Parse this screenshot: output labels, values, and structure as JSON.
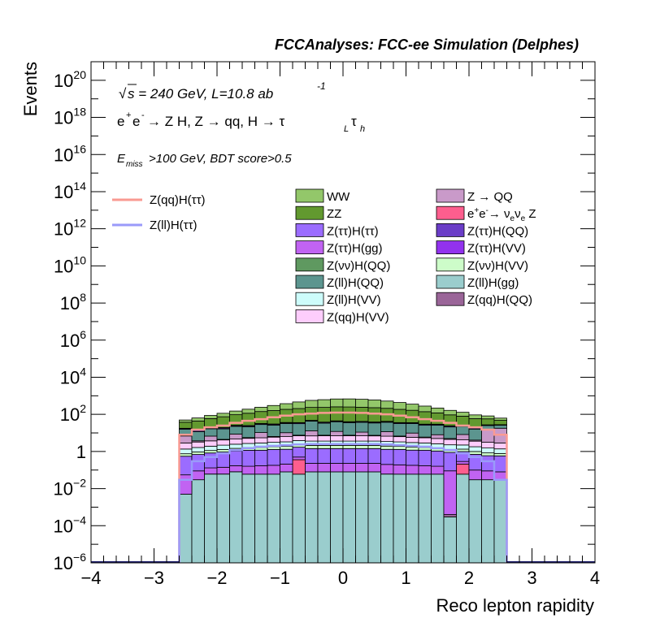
{
  "chart_data": {
    "type": "bar",
    "stacked": true,
    "log_scale_y": true,
    "title": "FCCAnalyses: FCC-ee Simulation (Delphes)",
    "xlabel": "Reco lepton rapidity",
    "ylabel": "Events",
    "xlim": [
      -4,
      4
    ],
    "ylim": [
      1e-06,
      1e+21
    ],
    "x_bins": [
      -2.6,
      -2.4,
      -2.2,
      -2.0,
      -1.8,
      -1.6,
      -1.4,
      -1.2,
      -1.0,
      -0.8,
      -0.6,
      -0.4,
      -0.2,
      0.0,
      0.2,
      0.4,
      0.6,
      0.8,
      1.0,
      1.2,
      1.4,
      1.6,
      1.8,
      2.0,
      2.2,
      2.4,
      2.6
    ],
    "x_ticks": [
      {
        "value": -4,
        "label": "−4"
      },
      {
        "value": -3,
        "label": "−3"
      },
      {
        "value": -2,
        "label": "−2"
      },
      {
        "value": -1,
        "label": "−1"
      },
      {
        "value": 0,
        "label": "0"
      },
      {
        "value": 1,
        "label": "1"
      },
      {
        "value": 2,
        "label": "2"
      },
      {
        "value": 3,
        "label": "3"
      },
      {
        "value": 4,
        "label": "4"
      }
    ],
    "y_ticks": [
      {
        "value": 1e-06,
        "base": "10",
        "exp": "−6"
      },
      {
        "value": 0.0001,
        "base": "10",
        "exp": "−4"
      },
      {
        "value": 0.01,
        "base": "10",
        "exp": "−2"
      },
      {
        "value": 1,
        "base": "1",
        "exp": ""
      },
      {
        "value": 100.0,
        "base": "10",
        "exp": "2"
      },
      {
        "value": 10000.0,
        "base": "10",
        "exp": "4"
      },
      {
        "value": 1000000.0,
        "base": "10",
        "exp": "6"
      },
      {
        "value": 100000000.0,
        "base": "10",
        "exp": "8"
      },
      {
        "value": 10000000000.0,
        "base": "10",
        "exp": "10"
      },
      {
        "value": 1000000000000.0,
        "base": "10",
        "exp": "12"
      },
      {
        "value": 100000000000000.0,
        "base": "10",
        "exp": "14"
      },
      {
        "value": 1e+16,
        "base": "10",
        "exp": "16"
      },
      {
        "value": 1e+18,
        "base": "10",
        "exp": "18"
      },
      {
        "value": 1e+20,
        "base": "10",
        "exp": "20"
      }
    ],
    "annotations": {
      "sqrt": "√",
      "energy": "s = 240 GeV, L=10.8 ab",
      "energy_sup": "-1",
      "process_main": "e",
      "process_sup1": "+",
      "process_mid": "e",
      "process_sup2": "-",
      "process_arrow1": " → Z H, Z  → qq, H  → τ",
      "process_sub1": "L",
      "process_tau2": "τ",
      "process_sub2": "h",
      "cut_e": "E",
      "cut_sub": "miss",
      "cut_rest": ">100 GeV, BDT score>0.5"
    },
    "stack_order_bottom_to_top": [
      "Z(ll)H(gg)",
      "Z(qq)H(QQ)",
      "e+e- → νeνe Z",
      "Z(νν)H(QQ)",
      "Z(ττ)H(gg)",
      "Z(ττ)H(ττ)",
      "Z(νν)H(VV)",
      "Z(ll)H(VV)",
      "Z(qq)H(VV)",
      "Z → QQ",
      "Z(ll)H(QQ)",
      "Z(ττ)H(QQ)",
      "Z(ττ)H(VV)",
      "ZZ",
      "WW"
    ],
    "series": [
      {
        "name": "WW",
        "legend": "WW",
        "color": "#93c76a",
        "values": [
          12,
          20,
          28,
          40,
          55,
          75,
          100,
          140,
          190,
          260,
          330,
          380,
          420,
          430,
          410,
          370,
          310,
          250,
          190,
          140,
          100,
          70,
          50,
          35,
          25,
          15
        ]
      },
      {
        "name": "ZZ",
        "legend": "ZZ",
        "color": "#62992f",
        "values": [
          20,
          30,
          40,
          55,
          70,
          90,
          110,
          130,
          150,
          170,
          190,
          200,
          210,
          210,
          200,
          190,
          170,
          150,
          130,
          110,
          90,
          70,
          55,
          40,
          30,
          20
        ]
      },
      {
        "name": "Z(ττ)H(ττ)",
        "legend": "Z(ττ)H(ττ)",
        "color": "#9b6cff",
        "values": [
          0.5,
          0.6,
          0.7,
          0.8,
          0.9,
          1.0,
          1.0,
          1.1,
          1.1,
          1.2,
          1.2,
          1.2,
          1.2,
          1.2,
          1.2,
          1.2,
          1.1,
          1.1,
          1.0,
          1.0,
          0.9,
          0.8,
          0.7,
          0.6,
          0.5,
          0.5
        ]
      },
      {
        "name": "Z(ττ)H(gg)",
        "legend": "Z(ττ)H(gg)",
        "color": "#c163f2",
        "values": [
          0.05,
          0.06,
          0.07,
          0.08,
          0.09,
          0.1,
          0.11,
          0.12,
          0.13,
          0.14,
          0.15,
          0.15,
          0.15,
          0.15,
          0.15,
          0.15,
          0.14,
          0.13,
          0.12,
          0.11,
          0.1,
          0.09,
          0.08,
          0.07,
          0.06,
          0.05
        ]
      },
      {
        "name": "Z(νν)H(QQ)",
        "legend": "Z(νν)H(QQ)",
        "color": "#5f9960",
        "values": [
          0,
          0,
          0.001,
          0.001,
          0.001,
          0,
          0,
          0,
          0,
          0.001,
          0,
          0,
          0,
          0,
          0,
          0,
          0.001,
          0,
          0,
          0,
          0,
          0,
          0,
          0,
          0,
          0
        ]
      },
      {
        "name": "Z(ll)H(QQ)",
        "legend": "Z(ll)H(QQ)",
        "color": "#5c958f",
        "values": [
          9,
          8,
          10,
          12,
          14,
          16,
          18,
          20,
          22,
          24,
          30,
          26,
          28,
          28,
          26,
          27,
          26,
          25,
          22,
          20,
          18,
          16,
          14,
          12,
          10,
          8
        ]
      },
      {
        "name": "Z(ll)H(VV)",
        "legend": "Z(ll)H(VV)",
        "color": "#cdfcfb",
        "values": [
          0.6,
          0.7,
          0.8,
          0.9,
          1.0,
          1.1,
          1.2,
          1.3,
          1.4,
          1.5,
          1.5,
          1.5,
          1.5,
          1.5,
          1.5,
          1.5,
          1.5,
          1.4,
          1.3,
          1.2,
          1.1,
          1.0,
          0.9,
          0.8,
          0.7,
          0.6
        ]
      },
      {
        "name": "Z(qq)H(VV)",
        "legend": "Z(qq)H(VV)",
        "color": "#fdcdfc",
        "values": [
          1.5,
          1.6,
          1.8,
          2.0,
          2.2,
          2.4,
          2.6,
          2.8,
          3.0,
          3.2,
          3.3,
          3.4,
          3.4,
          3.4,
          3.4,
          3.3,
          3.2,
          3.0,
          2.8,
          2.6,
          2.4,
          2.2,
          2.0,
          1.8,
          1.6,
          1.5
        ]
      },
      {
        "name": "Z → QQ",
        "legend": "Z → QQ",
        "color": "#c99ac9",
        "values": [
          4,
          0.5,
          3,
          0.3,
          4,
          0.5,
          5,
          0.5,
          4,
          0.5,
          6,
          0.5,
          5,
          0.5,
          4,
          0.5,
          5,
          0.5,
          4,
          0.5,
          3,
          0.5,
          4,
          0.5,
          12,
          15
        ]
      },
      {
        "name": "e+e- → νeνe Z",
        "legend_parts": [
          "e",
          "+",
          "e",
          "-",
          "→ ν",
          "e",
          "ν",
          "e",
          " Z"
        ],
        "color": "#fd5e8e",
        "values": [
          0,
          0,
          0,
          0,
          0,
          0,
          0,
          0,
          0,
          0.3,
          0,
          0,
          0,
          0,
          0,
          0,
          0,
          0,
          0,
          0,
          0,
          0,
          0.15,
          0,
          0,
          0
        ]
      },
      {
        "name": "Z(ττ)H(QQ)",
        "legend": "Z(ττ)H(QQ)",
        "color": "#6a3dc7",
        "values": [
          1.5,
          1.7,
          1.9,
          2.1,
          2.3,
          2.5,
          2.7,
          2.9,
          3.1,
          3.3,
          3.4,
          3.5,
          3.5,
          3.5,
          3.5,
          3.4,
          3.3,
          3.1,
          2.9,
          2.7,
          2.5,
          2.3,
          2.1,
          1.9,
          1.7,
          1.5
        ]
      },
      {
        "name": "Z(ττ)H(VV)",
        "legend": "Z(ττ)H(VV)",
        "color": "#9232ee",
        "values": [
          0.4,
          0.5,
          0.6,
          0.7,
          0.8,
          0.9,
          1.0,
          1.0,
          1.1,
          1.1,
          1.2,
          1.2,
          1.2,
          1.2,
          1.2,
          1.2,
          1.1,
          1.1,
          1.0,
          1.0,
          0.9,
          0.8,
          0.7,
          0.6,
          0.5,
          0.4
        ]
      },
      {
        "name": "Z(νν)H(VV)",
        "legend": "Z(νν)H(VV)",
        "color": "#cdfcc9",
        "values": [
          0.2,
          0.25,
          0.3,
          0.35,
          0.4,
          0.45,
          0.5,
          0.55,
          0.6,
          0.65,
          0.7,
          0.7,
          0.7,
          0.7,
          0.7,
          0.7,
          0.65,
          0.6,
          0.55,
          0.5,
          0.45,
          0.4,
          0.35,
          0.3,
          0.25,
          0.2
        ]
      },
      {
        "name": "Z(ll)H(gg)",
        "legend": "Z(ll)H(gg)",
        "color": "#9acdcd",
        "values": [
          0.005,
          0.03,
          0.06,
          0.06,
          0.08,
          0.06,
          0.06,
          0.06,
          0.08,
          0.06,
          0.08,
          0.08,
          0.08,
          0.08,
          0.08,
          0.08,
          0.06,
          0.06,
          0.06,
          0.06,
          0.06,
          0.0003,
          0.06,
          0.03,
          0.03,
          0.03
        ]
      },
      {
        "name": "Z(qq)H(QQ)",
        "legend": "Z(qq)H(QQ)",
        "color": "#9a6598",
        "values": [
          0,
          0,
          0,
          0,
          0,
          0,
          0,
          0,
          0,
          0,
          0,
          0,
          0,
          0,
          0,
          0,
          0,
          0,
          0,
          0,
          0,
          0.0001,
          0,
          0,
          0,
          0
        ]
      }
    ],
    "overlays": [
      {
        "name": "Z(qq)H(ττ)",
        "legend": "Z(qq)H(ττ)",
        "color": "#f99a92",
        "values": [
          8,
          15,
          20,
          25,
          35,
          45,
          55,
          70,
          85,
          100,
          110,
          120,
          125,
          125,
          120,
          110,
          100,
          85,
          70,
          55,
          45,
          35,
          25,
          20,
          15,
          8
        ]
      },
      {
        "name": "Z(ll)H(ττ)",
        "legend": "Z(ll)H(ττ)",
        "color": "#9a9afa",
        "values": [
          0.03,
          0.3,
          0.5,
          0.8,
          1.2,
          1.5,
          1.8,
          2.0,
          2.2,
          2.4,
          2.5,
          2.5,
          2.5,
          2.5,
          2.5,
          2.5,
          2.4,
          2.2,
          2.0,
          1.8,
          1.5,
          1.2,
          0.8,
          0.5,
          0.3,
          0.03
        ]
      }
    ],
    "legend_layout": {
      "overlay_column": [
        "Z(qq)H(ττ)",
        "Z(ll)H(ττ)"
      ],
      "column_1": [
        "WW",
        "ZZ",
        "Z(ττ)H(ττ)",
        "Z(ττ)H(gg)",
        "Z(νν)H(QQ)",
        "Z(ll)H(QQ)",
        "Z(ll)H(VV)",
        "Z(qq)H(VV)"
      ],
      "column_2": [
        "Z → QQ",
        "e+e- → νeνe Z",
        "Z(ττ)H(QQ)",
        "Z(ττ)H(VV)",
        "Z(νν)H(VV)",
        "Z(ll)H(gg)",
        "Z(qq)H(QQ)"
      ]
    }
  }
}
